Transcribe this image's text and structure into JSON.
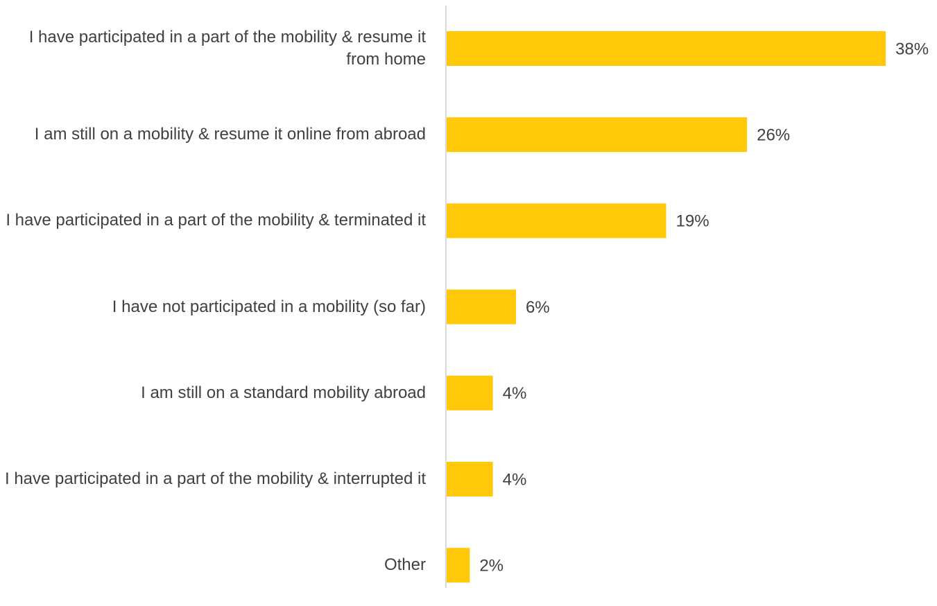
{
  "chart_data": {
    "type": "bar",
    "orientation": "horizontal",
    "categories": [
      "I have participated in a part of the mobility & resume it from home",
      "I am still on a mobility & resume it online from abroad",
      "I have participated in a part of the mobility & terminated it",
      "I have not participated in a mobility (so far)",
      "I am still on a standard mobility abroad",
      "I have participated in a part of the mobility & interrupted it",
      "Other"
    ],
    "values": [
      38,
      26,
      19,
      6,
      4,
      4,
      2
    ],
    "value_labels": [
      "38%",
      "26%",
      "19%",
      "6%",
      "4%",
      "4%",
      "2%"
    ],
    "color": "#FFC90A"
  }
}
